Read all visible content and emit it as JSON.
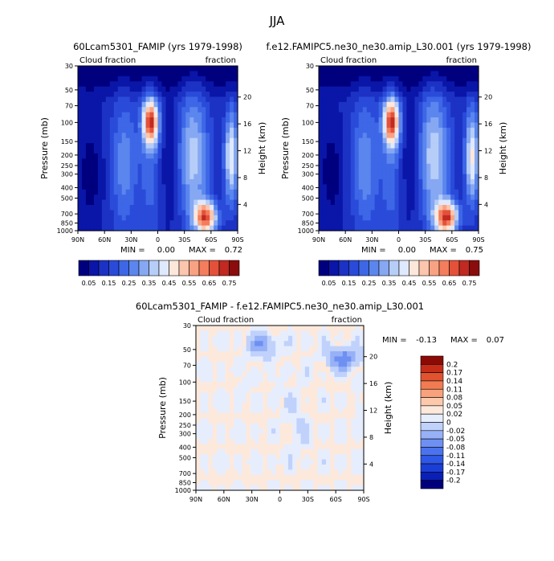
{
  "figure": {
    "title": "JJA"
  },
  "colors": {
    "abs_scale": [
      "#00007f",
      "#0a16a8",
      "#1c32c4",
      "#2a4bd9",
      "#3d67e6",
      "#5b86ee",
      "#86a8f3",
      "#b6cdf8",
      "#dfe9fd",
      "#fde7db",
      "#fcc6ad",
      "#f9a283",
      "#f47d5c",
      "#e4513a",
      "#c02a20",
      "#8b0c0c"
    ],
    "diff_scale": [
      "#00007f",
      "#0a1fb5",
      "#1a3fd6",
      "#2f58e6",
      "#4b73ee",
      "#6e90f3",
      "#97b1f7",
      "#c0d2fb",
      "#e6edfd",
      "#fde9dc",
      "#fcc9ad",
      "#f8a27c",
      "#f27b52",
      "#e0532e",
      "#c52d18",
      "#8c0a06"
    ]
  },
  "chart_data": [
    {
      "type": "heatmap",
      "title": "60Lcam5301_FAMIP (yrs 1979-1998)",
      "variable_label_left": "Cloud fraction",
      "variable_label_right": "fraction",
      "xlabel": "",
      "ylabel": "Pressure (mb)",
      "ylabel_right": "Height (km)",
      "x_ticks": [
        "90N",
        "60N",
        "30N",
        "0",
        "30S",
        "60S",
        "90S"
      ],
      "y_ticks": [
        "30",
        "50",
        "70",
        "100",
        "150",
        "200",
        "250",
        "300",
        "400",
        "500",
        "700",
        "850",
        "1000"
      ],
      "y_ticks_right": [
        "20",
        "16",
        "12",
        "8",
        "4"
      ],
      "stats": {
        "min_label": "MIN =",
        "min": "0.00",
        "max_label": "MAX =",
        "max": "0.72"
      },
      "colorbar_labels": [
        "0.05",
        "0.15",
        "0.25",
        "0.35",
        "0.45",
        "0.55",
        "0.65",
        "0.75"
      ],
      "colorbar_levels": 16
    },
    {
      "type": "heatmap",
      "title": "f.e12.FAMIPC5.ne30_ne30.amip_L30.001 (yrs 1979-1998)",
      "variable_label_left": "Cloud fraction",
      "variable_label_right": "fraction",
      "xlabel": "",
      "ylabel": "Pressure (mb)",
      "ylabel_right": "Height (km)",
      "x_ticks": [
        "90N",
        "60N",
        "30N",
        "0",
        "30S",
        "60S",
        "90S"
      ],
      "y_ticks": [
        "30",
        "50",
        "70",
        "100",
        "150",
        "200",
        "250",
        "300",
        "400",
        "500",
        "700",
        "850",
        "1000"
      ],
      "y_ticks_right": [
        "20",
        "16",
        "12",
        "8",
        "4"
      ],
      "stats": {
        "min_label": "MIN =",
        "min": "0.00",
        "max_label": "MAX =",
        "max": "0.75"
      },
      "colorbar_labels": [
        "0.05",
        "0.15",
        "0.25",
        "0.35",
        "0.45",
        "0.55",
        "0.65",
        "0.75"
      ],
      "colorbar_levels": 16
    },
    {
      "type": "heatmap",
      "title": "60Lcam5301_FAMIP - f.e12.FAMIPC5.ne30_ne30.amip_L30.001",
      "variable_label_left": "Cloud fraction",
      "variable_label_right": "fraction",
      "xlabel": "",
      "ylabel": "Pressure (mb)",
      "ylabel_right": "Height (km)",
      "x_ticks": [
        "90N",
        "60N",
        "30N",
        "0",
        "30S",
        "60S",
        "90S"
      ],
      "y_ticks": [
        "30",
        "50",
        "70",
        "100",
        "150",
        "200",
        "250",
        "300",
        "400",
        "500",
        "700",
        "850",
        "1000"
      ],
      "y_ticks_right": [
        "20",
        "16",
        "12",
        "8",
        "4"
      ],
      "stats": {
        "min_label": "MIN =",
        "min": "-0.13",
        "max_label": "MAX =",
        "max": "0.07"
      },
      "colorbar_labels": [
        "0.2",
        "0.17",
        "0.14",
        "0.11",
        "0.08",
        "0.05",
        "0.02",
        "0",
        "-0.02",
        "-0.05",
        "-0.08",
        "-0.11",
        "-0.14",
        "-0.17",
        "-0.2"
      ],
      "colorbar_levels": 16
    }
  ]
}
